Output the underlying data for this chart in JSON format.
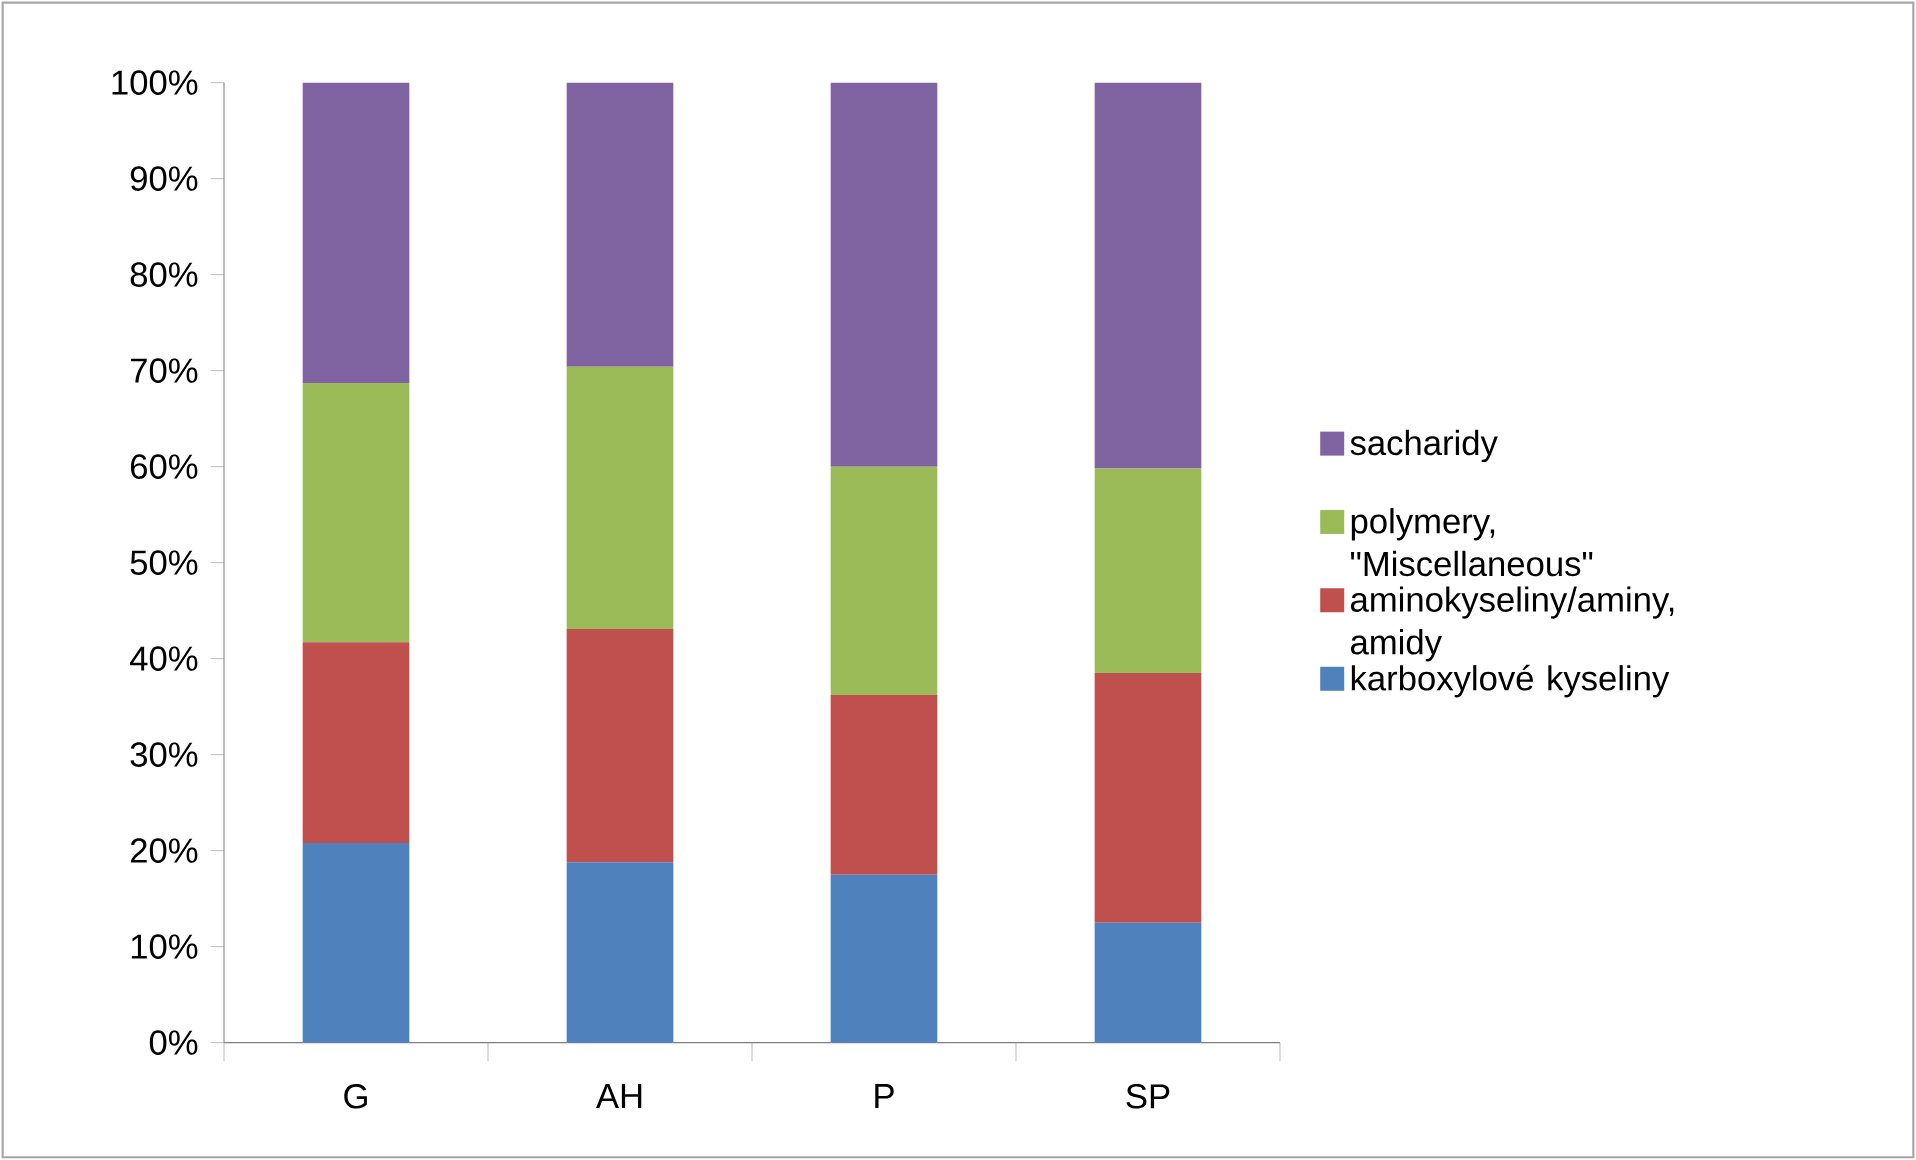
{
  "chart_data": {
    "type": "bar",
    "stacked": true,
    "categories": [
      "G",
      "AH",
      "P",
      "SP"
    ],
    "series": [
      {
        "name": "karboxylové kyseliny",
        "color": "#4f81bd",
        "values": [
          20.8,
          18.8,
          17.5,
          12.5
        ]
      },
      {
        "name": "aminokyseliny/aminy, amidy",
        "color": "#c0504d",
        "values": [
          20.9,
          24.3,
          18.7,
          26.0
        ]
      },
      {
        "name": "polymery, \"Miscellaneous\"",
        "color": "#9bbb59",
        "values": [
          27.0,
          27.3,
          23.8,
          21.3
        ]
      },
      {
        "name": "sacharidy",
        "color": "#8064a2",
        "values": [
          31.3,
          29.6,
          40.0,
          40.2
        ]
      }
    ],
    "ylim": [
      0,
      100
    ],
    "yticks": [
      {
        "value": 0,
        "label": "0%"
      },
      {
        "value": 10,
        "label": "10%"
      },
      {
        "value": 20,
        "label": "20%"
      },
      {
        "value": 30,
        "label": "30%"
      },
      {
        "value": 40,
        "label": "40%"
      },
      {
        "value": 50,
        "label": "50%"
      },
      {
        "value": 60,
        "label": "60%"
      },
      {
        "value": 70,
        "label": "70%"
      },
      {
        "value": 80,
        "label": "80%"
      },
      {
        "value": 90,
        "label": "90%"
      },
      {
        "value": 100,
        "label": "100%"
      }
    ],
    "grid": false,
    "legend": "right"
  }
}
